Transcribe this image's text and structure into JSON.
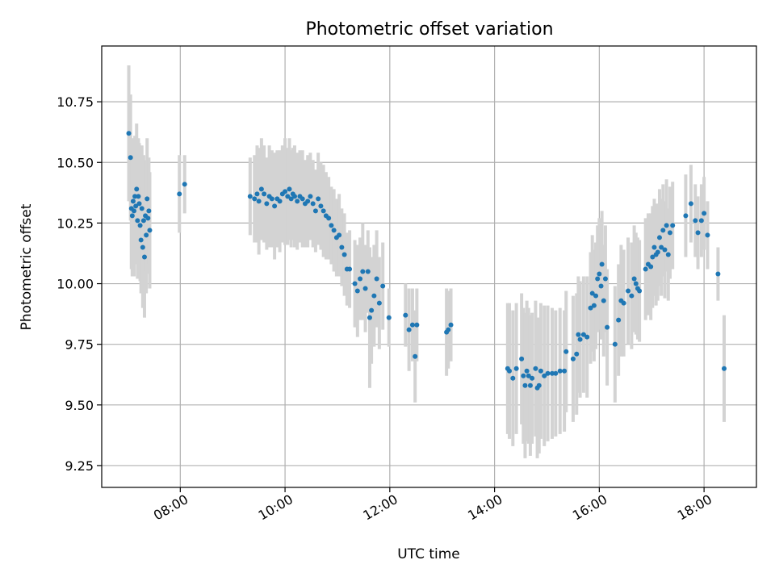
{
  "chart_data": {
    "type": "scatter",
    "title": "Photometric offset variation",
    "xlabel": "UTC time",
    "ylabel": "Photometric offset",
    "xlim": [
      "06:30",
      "19:00"
    ],
    "ylim": [
      9.16,
      10.98
    ],
    "x_ticks": [
      "08:00",
      "10:00",
      "12:00",
      "14:00",
      "16:00",
      "18:00"
    ],
    "y_ticks": [
      9.25,
      9.5,
      9.75,
      10.0,
      10.25,
      10.5,
      10.75
    ],
    "y_tick_labels": [
      "9.25",
      "9.50",
      "9.75",
      "10.00",
      "10.25",
      "10.50",
      "10.75"
    ],
    "grid": true,
    "marker_color": "#1f77b4",
    "errorbar_color": "#d3d3d3",
    "series": [
      {
        "points": [
          {
            "t": "07:01",
            "y": 10.62,
            "err": 0.28
          },
          {
            "t": "07:03",
            "y": 10.52,
            "err": 0.26
          },
          {
            "t": "07:04",
            "y": 10.31,
            "err": 0.25
          },
          {
            "t": "07:05",
            "y": 10.28,
            "err": 0.25
          },
          {
            "t": "07:06",
            "y": 10.34,
            "err": 0.26
          },
          {
            "t": "07:07",
            "y": 10.3,
            "err": 0.27
          },
          {
            "t": "07:08",
            "y": 10.36,
            "err": 0.25
          },
          {
            "t": "07:09",
            "y": 10.32,
            "err": 0.24
          },
          {
            "t": "07:10",
            "y": 10.39,
            "err": 0.27
          },
          {
            "t": "07:11",
            "y": 10.26,
            "err": 0.24
          },
          {
            "t": "07:12",
            "y": 10.36,
            "err": 0.24
          },
          {
            "t": "07:13",
            "y": 10.33,
            "err": 0.25
          },
          {
            "t": "07:14",
            "y": 10.24,
            "err": 0.23
          },
          {
            "t": "07:15",
            "y": 10.18,
            "err": 0.22
          },
          {
            "t": "07:16",
            "y": 10.31,
            "err": 0.26
          },
          {
            "t": "07:17",
            "y": 10.15,
            "err": 0.25
          },
          {
            "t": "07:18",
            "y": 10.26,
            "err": 0.27
          },
          {
            "t": "07:19",
            "y": 10.11,
            "err": 0.25
          },
          {
            "t": "07:20",
            "y": 10.28,
            "err": 0.23
          },
          {
            "t": "07:21",
            "y": 10.2,
            "err": 0.24
          },
          {
            "t": "07:22",
            "y": 10.35,
            "err": 0.25
          },
          {
            "t": "07:23",
            "y": 10.27,
            "err": 0.23
          },
          {
            "t": "07:24",
            "y": 10.3,
            "err": 0.22
          },
          {
            "t": "07:25",
            "y": 10.22,
            "err": 0.24
          },
          {
            "t": "07:59",
            "y": 10.37,
            "err": 0.16
          },
          {
            "t": "08:05",
            "y": 10.41,
            "err": 0.12
          },
          {
            "t": "09:20",
            "y": 10.36,
            "err": 0.16
          },
          {
            "t": "09:25",
            "y": 10.35,
            "err": 0.18
          },
          {
            "t": "09:28",
            "y": 10.37,
            "err": 0.2
          },
          {
            "t": "09:30",
            "y": 10.34,
            "err": 0.22
          },
          {
            "t": "09:33",
            "y": 10.39,
            "err": 0.21
          },
          {
            "t": "09:36",
            "y": 10.37,
            "err": 0.2
          },
          {
            "t": "09:39",
            "y": 10.33,
            "err": 0.19
          },
          {
            "t": "09:42",
            "y": 10.36,
            "err": 0.21
          },
          {
            "t": "09:45",
            "y": 10.35,
            "err": 0.2
          },
          {
            "t": "09:48",
            "y": 10.32,
            "err": 0.22
          },
          {
            "t": "09:51",
            "y": 10.35,
            "err": 0.2
          },
          {
            "t": "09:54",
            "y": 10.34,
            "err": 0.21
          },
          {
            "t": "09:57",
            "y": 10.37,
            "err": 0.2
          },
          {
            "t": "10:00",
            "y": 10.38,
            "err": 0.22
          },
          {
            "t": "10:03",
            "y": 10.36,
            "err": 0.2
          },
          {
            "t": "10:05",
            "y": 10.39,
            "err": 0.21
          },
          {
            "t": "10:07",
            "y": 10.35,
            "err": 0.2
          },
          {
            "t": "10:09",
            "y": 10.37,
            "err": 0.19
          },
          {
            "t": "10:11",
            "y": 10.36,
            "err": 0.21
          },
          {
            "t": "10:14",
            "y": 10.34,
            "err": 0.2
          },
          {
            "t": "10:17",
            "y": 10.36,
            "err": 0.19
          },
          {
            "t": "10:20",
            "y": 10.35,
            "err": 0.2
          },
          {
            "t": "10:23",
            "y": 10.33,
            "err": 0.18
          },
          {
            "t": "10:26",
            "y": 10.34,
            "err": 0.19
          },
          {
            "t": "10:29",
            "y": 10.36,
            "err": 0.18
          },
          {
            "t": "10:32",
            "y": 10.33,
            "err": 0.18
          },
          {
            "t": "10:35",
            "y": 10.3,
            "err": 0.17
          },
          {
            "t": "10:38",
            "y": 10.35,
            "err": 0.19
          },
          {
            "t": "10:41",
            "y": 10.32,
            "err": 0.18
          },
          {
            "t": "10:44",
            "y": 10.3,
            "err": 0.19
          },
          {
            "t": "10:47",
            "y": 10.28,
            "err": 0.18
          },
          {
            "t": "10:50",
            "y": 10.27,
            "err": 0.17
          },
          {
            "t": "10:53",
            "y": 10.24,
            "err": 0.16
          },
          {
            "t": "10:56",
            "y": 10.22,
            "err": 0.17
          },
          {
            "t": "10:59",
            "y": 10.19,
            "err": 0.16
          },
          {
            "t": "11:02",
            "y": 10.2,
            "err": 0.17
          },
          {
            "t": "11:05",
            "y": 10.15,
            "err": 0.16
          },
          {
            "t": "11:08",
            "y": 10.12,
            "err": 0.17
          },
          {
            "t": "11:11",
            "y": 10.06,
            "err": 0.15
          },
          {
            "t": "11:14",
            "y": 10.06,
            "err": 0.16
          },
          {
            "t": "11:20",
            "y": 10.0,
            "err": 0.18
          },
          {
            "t": "11:23",
            "y": 9.97,
            "err": 0.19
          },
          {
            "t": "11:26",
            "y": 10.02,
            "err": 0.17
          },
          {
            "t": "11:29",
            "y": 10.05,
            "err": 0.2
          },
          {
            "t": "11:32",
            "y": 9.98,
            "err": 0.18
          },
          {
            "t": "11:35",
            "y": 10.05,
            "err": 0.17
          },
          {
            "t": "11:37",
            "y": 9.86,
            "err": 0.29
          },
          {
            "t": "11:39",
            "y": 9.89,
            "err": 0.22
          },
          {
            "t": "11:42",
            "y": 9.95,
            "err": 0.21
          },
          {
            "t": "11:45",
            "y": 10.02,
            "err": 0.2
          },
          {
            "t": "11:48",
            "y": 9.92,
            "err": 0.19
          },
          {
            "t": "11:52",
            "y": 9.99,
            "err": 0.18
          },
          {
            "t": "11:59",
            "y": 9.86,
            "err": 0.12
          },
          {
            "t": "12:18",
            "y": 9.87,
            "err": 0.13
          },
          {
            "t": "12:22",
            "y": 9.81,
            "err": 0.17
          },
          {
            "t": "12:26",
            "y": 9.83,
            "err": 0.15
          },
          {
            "t": "12:29",
            "y": 9.7,
            "err": 0.19
          },
          {
            "t": "12:31",
            "y": 9.83,
            "err": 0.15
          },
          {
            "t": "13:05",
            "y": 9.8,
            "err": 0.18
          },
          {
            "t": "13:07",
            "y": 9.81,
            "err": 0.16
          },
          {
            "t": "13:10",
            "y": 9.83,
            "err": 0.15
          },
          {
            "t": "14:15",
            "y": 9.65,
            "err": 0.27
          },
          {
            "t": "14:17",
            "y": 9.64,
            "err": 0.28
          },
          {
            "t": "14:21",
            "y": 9.61,
            "err": 0.28
          },
          {
            "t": "14:25",
            "y": 9.65,
            "err": 0.27
          },
          {
            "t": "14:31",
            "y": 9.69,
            "err": 0.27
          },
          {
            "t": "14:33",
            "y": 9.62,
            "err": 0.28
          },
          {
            "t": "14:35",
            "y": 9.58,
            "err": 0.3
          },
          {
            "t": "14:37",
            "y": 9.64,
            "err": 0.29
          },
          {
            "t": "14:39",
            "y": 9.62,
            "err": 0.28
          },
          {
            "t": "14:41",
            "y": 9.58,
            "err": 0.29
          },
          {
            "t": "14:43",
            "y": 9.61,
            "err": 0.27
          },
          {
            "t": "14:47",
            "y": 9.65,
            "err": 0.28
          },
          {
            "t": "14:49",
            "y": 9.57,
            "err": 0.29
          },
          {
            "t": "14:51",
            "y": 9.58,
            "err": 0.28
          },
          {
            "t": "14:53",
            "y": 9.64,
            "err": 0.28
          },
          {
            "t": "14:57",
            "y": 9.62,
            "err": 0.29
          },
          {
            "t": "15:01",
            "y": 9.63,
            "err": 0.28
          },
          {
            "t": "15:06",
            "y": 9.63,
            "err": 0.27
          },
          {
            "t": "15:10",
            "y": 9.63,
            "err": 0.26
          },
          {
            "t": "15:15",
            "y": 9.64,
            "err": 0.26
          },
          {
            "t": "15:20",
            "y": 9.64,
            "err": 0.25
          },
          {
            "t": "15:22",
            "y": 9.72,
            "err": 0.25
          },
          {
            "t": "15:30",
            "y": 9.69,
            "err": 0.26
          },
          {
            "t": "15:34",
            "y": 9.71,
            "err": 0.25
          },
          {
            "t": "15:36",
            "y": 9.79,
            "err": 0.24
          },
          {
            "t": "15:38",
            "y": 9.77,
            "err": 0.24
          },
          {
            "t": "15:42",
            "y": 9.79,
            "err": 0.24
          },
          {
            "t": "15:46",
            "y": 9.78,
            "err": 0.25
          },
          {
            "t": "15:50",
            "y": 9.9,
            "err": 0.23
          },
          {
            "t": "15:52",
            "y": 9.96,
            "err": 0.24
          },
          {
            "t": "15:54",
            "y": 9.91,
            "err": 0.23
          },
          {
            "t": "15:56",
            "y": 9.95,
            "err": 0.22
          },
          {
            "t": "15:58",
            "y": 10.02,
            "err": 0.22
          },
          {
            "t": "16:00",
            "y": 10.04,
            "err": 0.23
          },
          {
            "t": "16:02",
            "y": 9.99,
            "err": 0.22
          },
          {
            "t": "16:03",
            "y": 10.08,
            "err": 0.22
          },
          {
            "t": "16:05",
            "y": 9.93,
            "err": 0.23
          },
          {
            "t": "16:07",
            "y": 10.02,
            "err": 0.22
          },
          {
            "t": "16:09",
            "y": 9.82,
            "err": 0.24
          },
          {
            "t": "16:18",
            "y": 9.75,
            "err": 0.24
          },
          {
            "t": "16:22",
            "y": 9.85,
            "err": 0.23
          },
          {
            "t": "16:25",
            "y": 9.93,
            "err": 0.23
          },
          {
            "t": "16:28",
            "y": 9.92,
            "err": 0.22
          },
          {
            "t": "16:33",
            "y": 9.97,
            "err": 0.22
          },
          {
            "t": "16:37",
            "y": 9.95,
            "err": 0.22
          },
          {
            "t": "16:40",
            "y": 10.02,
            "err": 0.22
          },
          {
            "t": "16:42",
            "y": 10.0,
            "err": 0.21
          },
          {
            "t": "16:44",
            "y": 9.98,
            "err": 0.21
          },
          {
            "t": "16:46",
            "y": 9.97,
            "err": 0.21
          },
          {
            "t": "16:53",
            "y": 10.06,
            "err": 0.21
          },
          {
            "t": "16:56",
            "y": 10.08,
            "err": 0.21
          },
          {
            "t": "16:59",
            "y": 10.07,
            "err": 0.22
          },
          {
            "t": "17:01",
            "y": 10.11,
            "err": 0.21
          },
          {
            "t": "17:03",
            "y": 10.15,
            "err": 0.2
          },
          {
            "t": "17:05",
            "y": 10.12,
            "err": 0.21
          },
          {
            "t": "17:07",
            "y": 10.13,
            "err": 0.2
          },
          {
            "t": "17:09",
            "y": 10.19,
            "err": 0.2
          },
          {
            "t": "17:11",
            "y": 10.15,
            "err": 0.2
          },
          {
            "t": "17:13",
            "y": 10.22,
            "err": 0.19
          },
          {
            "t": "17:15",
            "y": 10.14,
            "err": 0.2
          },
          {
            "t": "17:17",
            "y": 10.24,
            "err": 0.19
          },
          {
            "t": "17:19",
            "y": 10.12,
            "err": 0.19
          },
          {
            "t": "17:21",
            "y": 10.21,
            "err": 0.19
          },
          {
            "t": "17:24",
            "y": 10.24,
            "err": 0.18
          },
          {
            "t": "17:39",
            "y": 10.28,
            "err": 0.17
          },
          {
            "t": "17:45",
            "y": 10.33,
            "err": 0.16
          },
          {
            "t": "17:50",
            "y": 10.26,
            "err": 0.15
          },
          {
            "t": "17:53",
            "y": 10.21,
            "err": 0.15
          },
          {
            "t": "17:57",
            "y": 10.26,
            "err": 0.15
          },
          {
            "t": "18:00",
            "y": 10.29,
            "err": 0.15
          },
          {
            "t": "18:04",
            "y": 10.2,
            "err": 0.14
          },
          {
            "t": "18:16",
            "y": 10.04,
            "err": 0.11
          },
          {
            "t": "18:23",
            "y": 9.65,
            "err": 0.22
          }
        ]
      }
    ]
  }
}
